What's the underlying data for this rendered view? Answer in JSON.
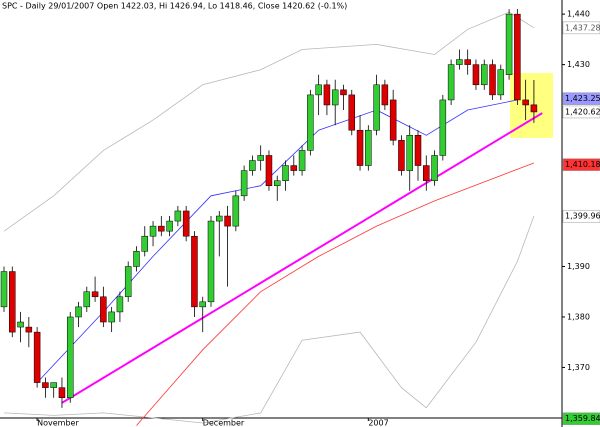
{
  "chart_data": {
    "type": "candlestick",
    "title": "SPC - Daily 29/01/2007 Open 1422.03, Hi 1426.94, Lo 1418.46, Close 1420.62 (-0.1%)",
    "categories": [
      null,
      null,
      null,
      null,
      "November",
      null,
      null,
      null,
      null,
      null,
      null,
      null,
      null,
      null,
      null,
      null,
      null,
      null,
      null,
      null,
      null,
      null,
      null,
      null,
      "December",
      null,
      null,
      null,
      null,
      null,
      null,
      null,
      null,
      null,
      null,
      null,
      null,
      null,
      null,
      null,
      null,
      null,
      null,
      null,
      "2007",
      null,
      null,
      null,
      null,
      null,
      null,
      null,
      null,
      null,
      null,
      null,
      null,
      null,
      null,
      null,
      null,
      null,
      null,
      null,
      null
    ],
    "open": [
      1382,
      1389,
      1378,
      1378,
      1377,
      1367,
      1366,
      1366,
      1364,
      1380,
      1382,
      1385,
      1384,
      1379,
      1381,
      1384,
      1390,
      1393,
      1396,
      1398,
      1397,
      1399,
      1401,
      1396,
      1382,
      1383,
      1399,
      1400,
      1398,
      1404,
      1409,
      1411,
      1412,
      1406,
      1407,
      1410,
      1409,
      1413,
      1424,
      1426,
      1422,
      1425,
      1424,
      1417,
      1410,
      1417,
      1426,
      1423,
      1415,
      1409,
      1416,
      1410,
      1407,
      1412,
      1423,
      1430,
      1431,
      1430,
      1426,
      1430,
      1424,
      1428,
      1440,
      1423,
      1422.03
    ],
    "high": [
      1390,
      1390,
      1381,
      1380,
      1378,
      1368,
      1367,
      1368,
      1381,
      1383,
      1386,
      1388,
      1386,
      1382,
      1385,
      1391,
      1394,
      1398,
      1399,
      1400,
      1400,
      1402,
      1402,
      1397,
      1384,
      1400,
      1401,
      1402,
      1405,
      1410,
      1412,
      1414,
      1413,
      1408,
      1411,
      1412,
      1414,
      1425,
      1428,
      1427,
      1427,
      1426,
      1425,
      1420,
      1418,
      1428,
      1427,
      1425,
      1416,
      1418,
      1417,
      1412,
      1413,
      1424,
      1431,
      1433,
      1433,
      1431,
      1431,
      1431,
      1430,
      1441,
      1441,
      1427,
      1426.94
    ],
    "low": [
      1381,
      1376,
      1375,
      1374,
      1366,
      1364,
      1364,
      1362,
      1363,
      1378,
      1381,
      1383,
      1378,
      1377,
      1379,
      1383,
      1389,
      1392,
      1394,
      1396,
      1396,
      1398,
      1395,
      1380,
      1377,
      1382,
      1392,
      1386,
      1397,
      1403,
      1408,
      1409,
      1405,
      1403,
      1405,
      1408,
      1408,
      1412,
      1420,
      1420,
      1418,
      1421,
      1416,
      1409,
      1409,
      1416,
      1421,
      1414,
      1408,
      1405,
      1407,
      1405,
      1406,
      1411,
      1422,
      1429,
      1428,
      1425,
      1425,
      1423,
      1423,
      1427,
      1422,
      1419,
      1418.46
    ],
    "close": [
      1389,
      1377,
      1379,
      1377,
      1367,
      1366,
      1367,
      1364,
      1380,
      1382,
      1385,
      1384,
      1379,
      1381,
      1384,
      1390,
      1393,
      1396,
      1398,
      1397,
      1399,
      1401,
      1396,
      1382,
      1383,
      1399,
      1400,
      1398,
      1404,
      1409,
      1411,
      1412,
      1406,
      1407,
      1410,
      1409,
      1413,
      1424,
      1426,
      1422,
      1425,
      1424,
      1417,
      1410,
      1417,
      1426,
      1422,
      1415,
      1409,
      1416,
      1410,
      1407,
      1412,
      1423,
      1430,
      1431,
      1430,
      1426,
      1430,
      1424,
      1429,
      1440,
      1423,
      1422,
      1420.62
    ],
    "up_color": "#33cc33",
    "down_color": "#dd0000",
    "overlays": [
      {
        "color": "#b8b8b8",
        "x": [
          0,
          6,
          12,
          18,
          24,
          31,
          36,
          45,
          52,
          56,
          61,
          64
        ],
        "values": [
          1397,
          1404,
          1413,
          1419,
          1426,
          1429,
          1433,
          1434,
          1432,
          1437,
          1440.4,
          1437.3
        ]
      },
      {
        "color": "#b8b8b8",
        "x": [
          0,
          6,
          12,
          18,
          24,
          31,
          36,
          43,
          48,
          51,
          57,
          62,
          64
        ],
        "values": [
          1361,
          1360.5,
          1361,
          1360,
          1359,
          1361,
          1375.4,
          1377,
          1366,
          1362,
          1375,
          1391,
          1400
        ]
      },
      {
        "color": "#3333ff",
        "x": [
          4,
          12,
          18,
          25,
          31,
          38,
          45,
          51,
          56,
          62
        ],
        "values": [
          1367,
          1381,
          1392,
          1404,
          1406,
          1417,
          1421,
          1416,
          1421,
          1423
        ]
      },
      {
        "color": "#ff3333",
        "x": [
          16,
          24,
          31,
          38,
          45,
          52,
          60,
          64
        ],
        "values": [
          1358.5,
          1373.5,
          1385,
          1392,
          1398,
          1403,
          1408,
          1410.5
        ]
      },
      {
        "color": "#ff00ff",
        "x": [
          7,
          65
        ],
        "values": [
          1363,
          1420.4
        ]
      }
    ],
    "ylim": [
      1358.2,
      1442.8
    ],
    "yticks": [
      {
        "value": 1370,
        "label": "1,370"
      },
      {
        "value": 1380,
        "label": "1,380"
      },
      {
        "value": 1390,
        "label": "1,390"
      },
      {
        "value": 1430,
        "label": "1,430"
      },
      {
        "value": 1440,
        "label": "1,440"
      }
    ],
    "price_labels": [
      {
        "value": 1437.28,
        "label": "1,437.28",
        "color": "#ffffff",
        "text_color": "#555555"
      },
      {
        "value": 1423.25,
        "label": "1,423.25",
        "color": "#9999ff",
        "text_color": "#000000"
      },
      {
        "value": 1420.62,
        "label": "1,420.62",
        "color": "#ffffff",
        "text_color": "#000000"
      },
      {
        "value": 1410.18,
        "label": "1,410.18",
        "color": "#ff3333",
        "text_color": "#000000"
      },
      {
        "value": 1399.96,
        "label": "1,399.96",
        "color": "#ffffff",
        "text_color": "#000000"
      },
      {
        "value": 1359.84,
        "label": "1,359.84",
        "color": "#33cc33",
        "text_color": "#000000"
      }
    ]
  }
}
